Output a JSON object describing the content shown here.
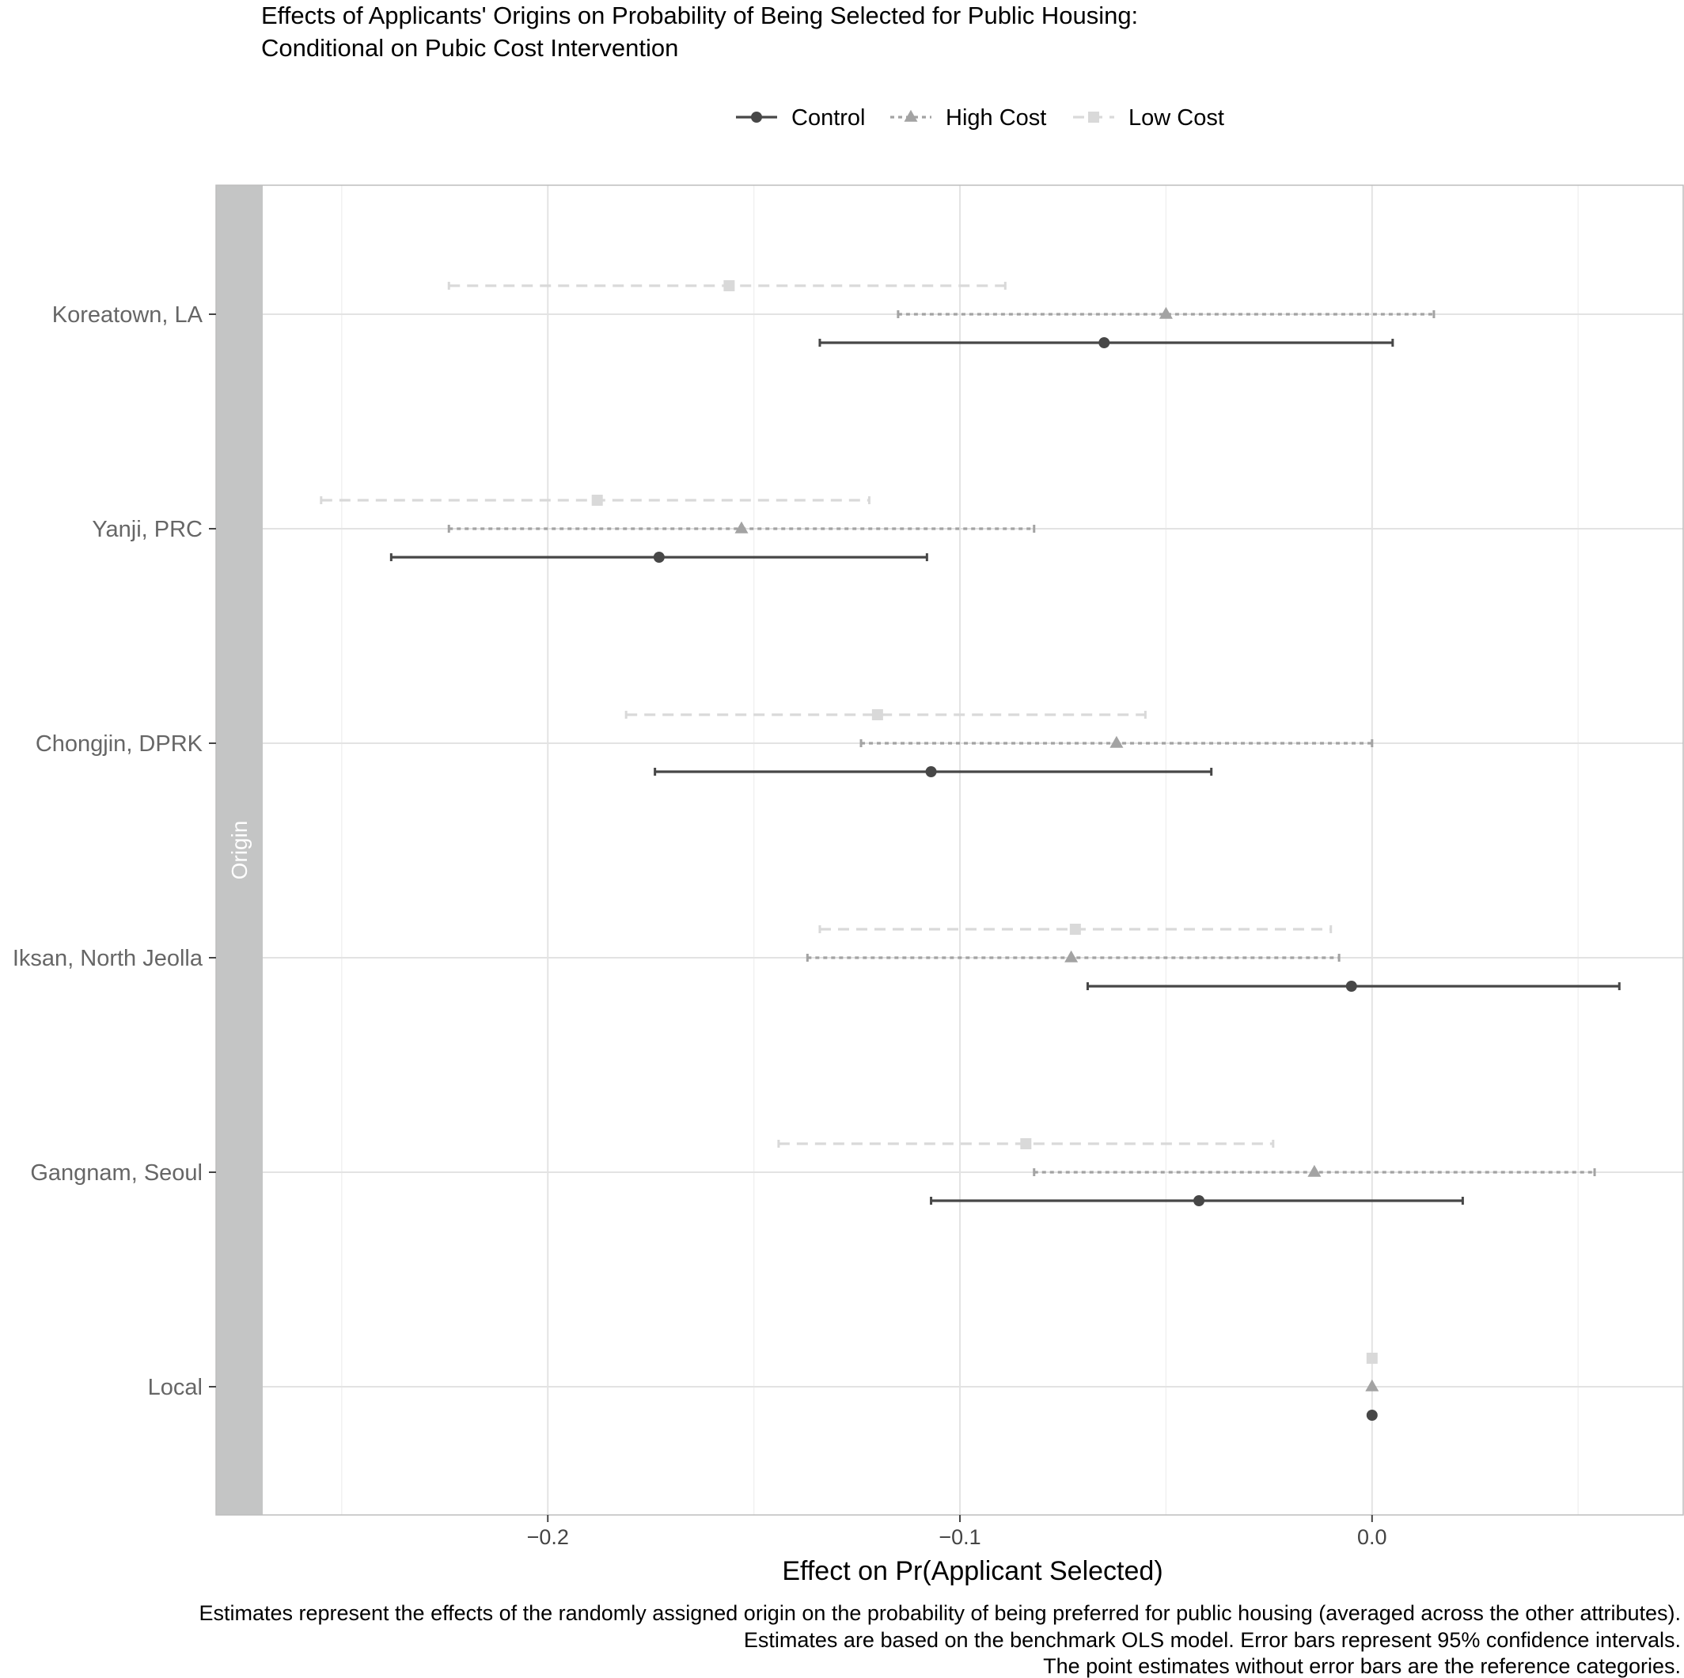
{
  "chart_data": {
    "type": "scatter",
    "title_lines": [
      "Effects of Applicants' Origins on Probability of Being Selected for Public Housing:",
      "Conditional on Pubic Cost Intervention"
    ],
    "xlabel": "Effect on Pr(Applicant Selected)",
    "facet_label": "Origin",
    "xlim": [
      -0.2805,
      0.0755
    ],
    "x_ticks": [
      -0.2,
      -0.1,
      0.0
    ],
    "x_tick_labels": [
      "−0.2",
      "−0.1",
      "0.0"
    ],
    "grid": true,
    "legend_position": "top",
    "categories": [
      "Koreatown, LA",
      "Yanji, PRC",
      "Chongjin, DPRK",
      "Iksan, North Jeolla",
      "Gangnam, Seoul",
      "Local"
    ],
    "series": [
      {
        "name": "Control",
        "color": "#474747",
        "marker": "circle",
        "line_style": "solid",
        "estimates": [
          -0.065,
          -0.173,
          -0.107,
          -0.005,
          -0.042,
          0.0
        ],
        "ci_low": [
          -0.134,
          -0.238,
          -0.174,
          -0.069,
          -0.107,
          null
        ],
        "ci_high": [
          0.005,
          -0.108,
          -0.039,
          0.06,
          0.022,
          null
        ]
      },
      {
        "name": "High Cost",
        "color": "#a3a3a3",
        "marker": "triangle",
        "line_style": "dotted",
        "estimates": [
          -0.05,
          -0.153,
          -0.062,
          -0.073,
          -0.014,
          0.0
        ],
        "ci_low": [
          -0.115,
          -0.224,
          -0.124,
          -0.137,
          -0.082,
          null
        ],
        "ci_high": [
          0.015,
          -0.082,
          0.0,
          -0.008,
          0.054,
          null
        ]
      },
      {
        "name": "Low Cost",
        "color": "#d9d9d9",
        "marker": "square",
        "line_style": "dashed",
        "estimates": [
          -0.156,
          -0.188,
          -0.12,
          -0.072,
          -0.084,
          0.0
        ],
        "ci_low": [
          -0.224,
          -0.255,
          -0.181,
          -0.134,
          -0.144,
          null
        ],
        "ci_high": [
          -0.089,
          -0.122,
          -0.055,
          -0.01,
          -0.024,
          null
        ]
      }
    ],
    "caption_lines": [
      "Estimates represent the effects of the randomly assigned origin on the probability of being preferred for public housing (averaged across the other attributes).",
      "Estimates are based on the benchmark OLS model. Error bars represent 95% confidence intervals.",
      "The point estimates without error bars are the reference categories."
    ]
  }
}
